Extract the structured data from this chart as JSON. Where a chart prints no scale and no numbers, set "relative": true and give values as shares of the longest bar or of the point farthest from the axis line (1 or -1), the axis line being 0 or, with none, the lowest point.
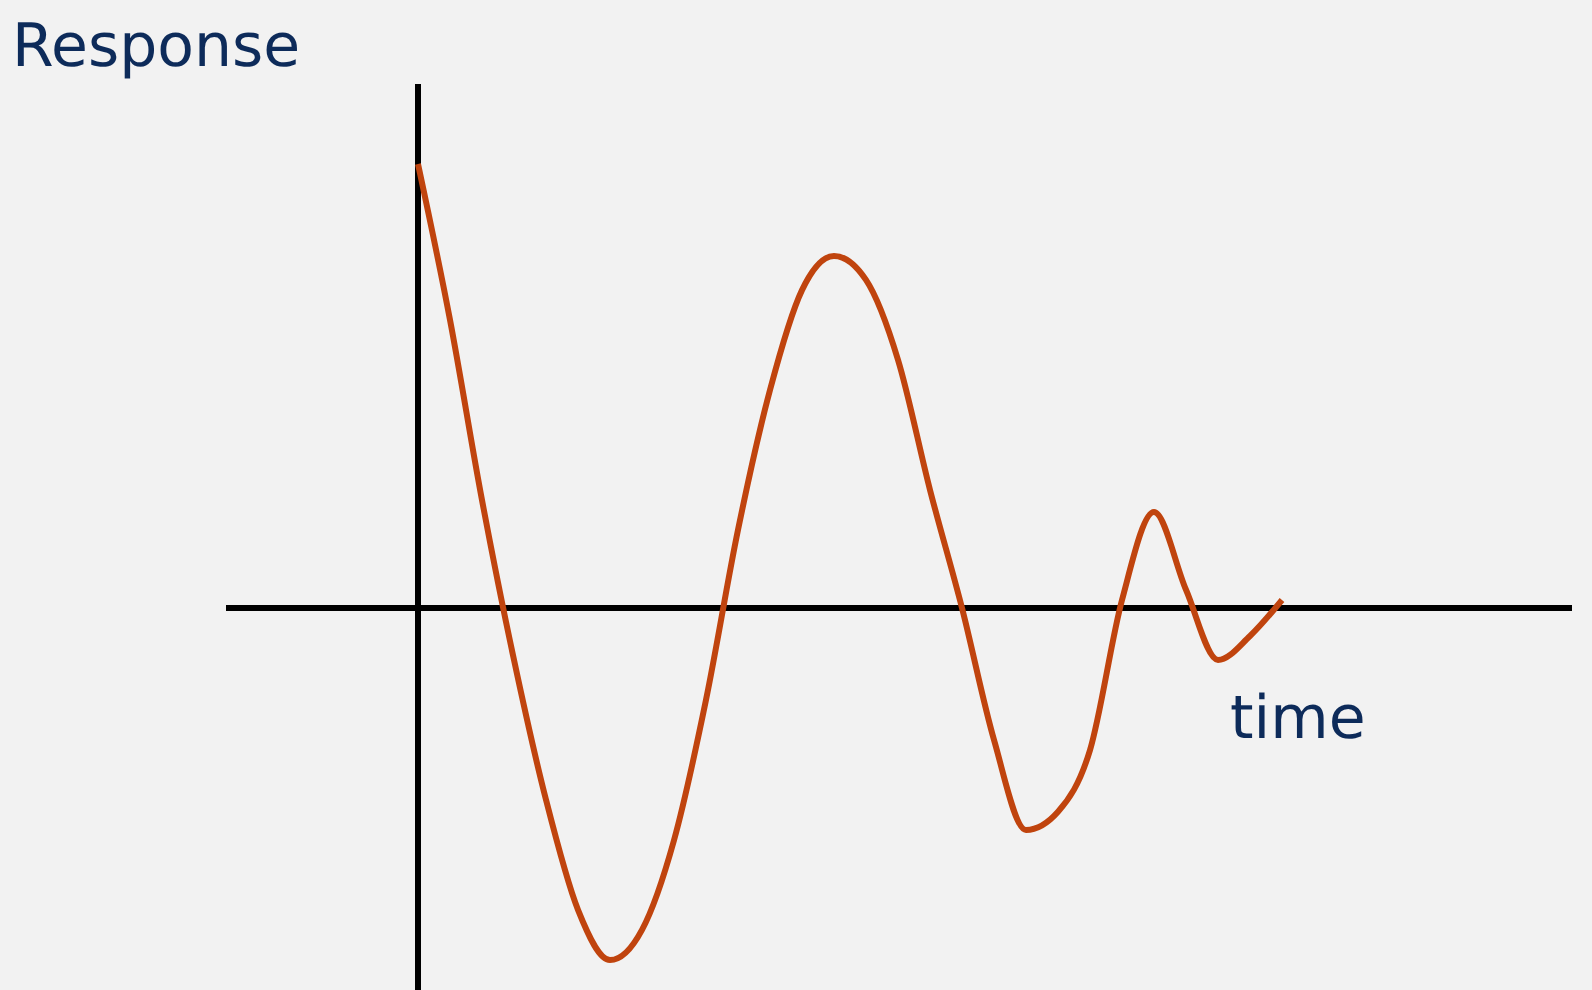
{
  "chart_data": {
    "type": "line",
    "relative": true,
    "ylabel": "Response",
    "xlabel": "time",
    "categories": [
      null,
      null,
      null,
      null,
      null,
      null,
      null,
      null,
      null,
      null,
      null,
      null,
      null,
      null,
      null,
      null,
      null,
      null,
      null,
      null,
      null,
      null,
      null,
      null,
      null,
      null,
      null,
      null
    ],
    "series": [
      {
        "color": "#c0440e",
        "values": [
          1.0,
          0.649,
          0.243,
          -0.117,
          -0.432,
          -0.68,
          -0.793,
          -0.725,
          -0.523,
          -0.207,
          0.176,
          0.491,
          0.716,
          0.793,
          0.739,
          0.559,
          0.266,
          0.0,
          -0.297,
          -0.5,
          -0.459,
          -0.32,
          0.018,
          0.216,
          0.041,
          -0.117,
          -0.063,
          0.018
        ]
      }
    ],
    "grid": false,
    "marker": "none",
    "line_style": "solid"
  }
}
